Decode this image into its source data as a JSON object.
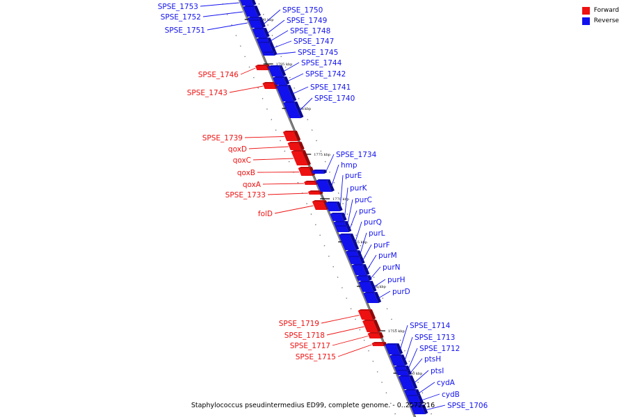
{
  "colors": {
    "forward": "#ee1111",
    "reverse": "#1111ee",
    "backbone": "#808080",
    "backbone_edge": "#555555"
  },
  "legend": [
    {
      "label": "Forward",
      "color": "#ee1111"
    },
    {
      "label": "Reverse",
      "color": "#1111ee"
    }
  ],
  "caption": "Staphylococcus pseudintermedius ED99, complete genome. - 0..2572216",
  "tick_labels": [
    "1790 kbp",
    "1785 kbp",
    "1780 kbp",
    "1775 kbp",
    "1770 kbp",
    "1765 kbp",
    "1760 kbp",
    "1755 kbp",
    "1750 kbp"
  ],
  "forward_genes": [
    "SPSE_1746",
    "SPSE_1743",
    "SPSE_1739",
    "qoxD",
    "qoxC",
    "qoxB",
    "qoxA",
    "SPSE_1733",
    "folD",
    "SPSE_1719",
    "SPSE_1718",
    "SPSE_1717",
    "SPSE_1715"
  ],
  "reverse_genes_left": [
    "SPSE_1753",
    "SPSE_1752",
    "SPSE_1751"
  ],
  "reverse_genes_right": [
    "SPSE_1750",
    "SPSE_1749",
    "SPSE_1748",
    "SPSE_1747",
    "SPSE_1745",
    "SPSE_1744",
    "SPSE_1742",
    "SPSE_1741",
    "SPSE_1740",
    "SPSE_1734",
    "hmp",
    "purE",
    "purK",
    "purC",
    "purS",
    "purQ",
    "purL",
    "purF",
    "purM",
    "purN",
    "purH",
    "purD",
    "SPSE_1714",
    "SPSE_1713",
    "SPSE_1712",
    "ptsH",
    "ptsI",
    "cydA",
    "cydB",
    "SPSE_1706"
  ]
}
